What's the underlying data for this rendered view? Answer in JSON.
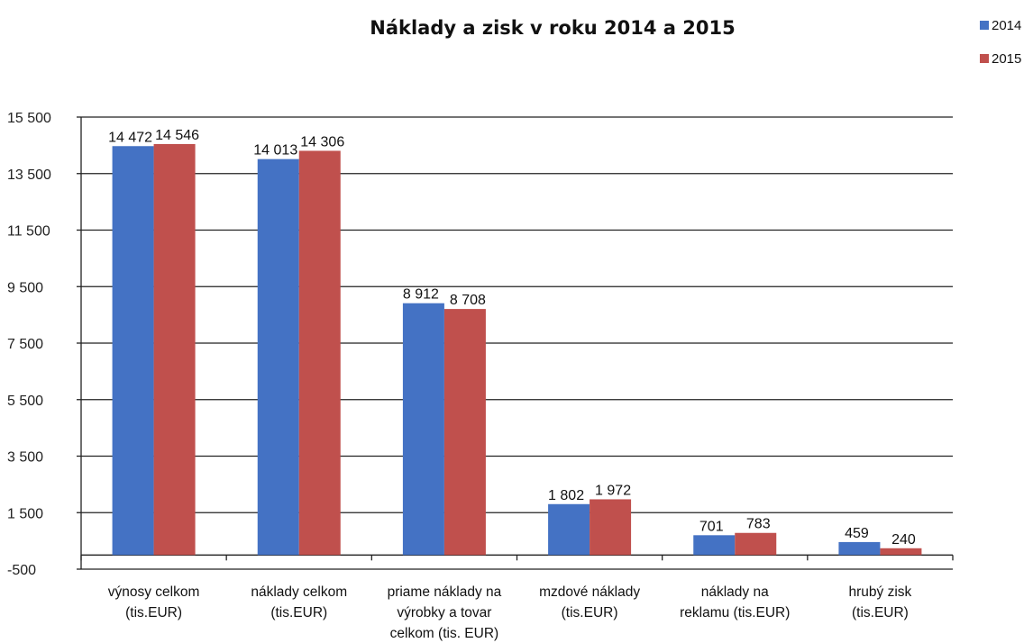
{
  "chart_data": {
    "type": "bar",
    "title": "Náklady a zisk v roku 2014 a 2015",
    "categories": [
      [
        "výnosy celkom",
        "(tis.EUR)"
      ],
      [
        "náklady celkom",
        "(tis.EUR)"
      ],
      [
        "priame náklady na",
        "výrobky a tovar",
        "celkom (tis. EUR)"
      ],
      [
        "mzdové náklady",
        "(tis.EUR)"
      ],
      [
        "náklady na",
        "reklamu  (tis.EUR)"
      ],
      [
        "hrubý zisk",
        "(tis.EUR)"
      ]
    ],
    "series": [
      {
        "name": "2014",
        "color": "#4472c4",
        "values": [
          14472,
          14013,
          8912,
          1802,
          701,
          459
        ],
        "labels": [
          "14 472",
          "14 013",
          "8 912",
          "1 802",
          "701",
          "459"
        ]
      },
      {
        "name": "2015",
        "color": "#c0504d",
        "values": [
          14546,
          14306,
          8708,
          1972,
          783,
          240
        ],
        "labels": [
          "14 546",
          "14 306",
          "8 708",
          "1 972",
          "783",
          "240"
        ]
      }
    ],
    "ylim": [
      -500,
      15500
    ],
    "yticks": [
      {
        "value": -500,
        "label": "-500"
      },
      {
        "value": 1500,
        "label": "1 500"
      },
      {
        "value": 3500,
        "label": "3 500"
      },
      {
        "value": 5500,
        "label": "5 500"
      },
      {
        "value": 7500,
        "label": "7 500"
      },
      {
        "value": 9500,
        "label": "9 500"
      },
      {
        "value": 11500,
        "label": "11 500"
      },
      {
        "value": 13500,
        "label": "13 500"
      },
      {
        "value": 15500,
        "label": "15 500"
      }
    ],
    "xlabel": "",
    "ylabel": "",
    "grid": true,
    "legend_position": "top-right"
  }
}
